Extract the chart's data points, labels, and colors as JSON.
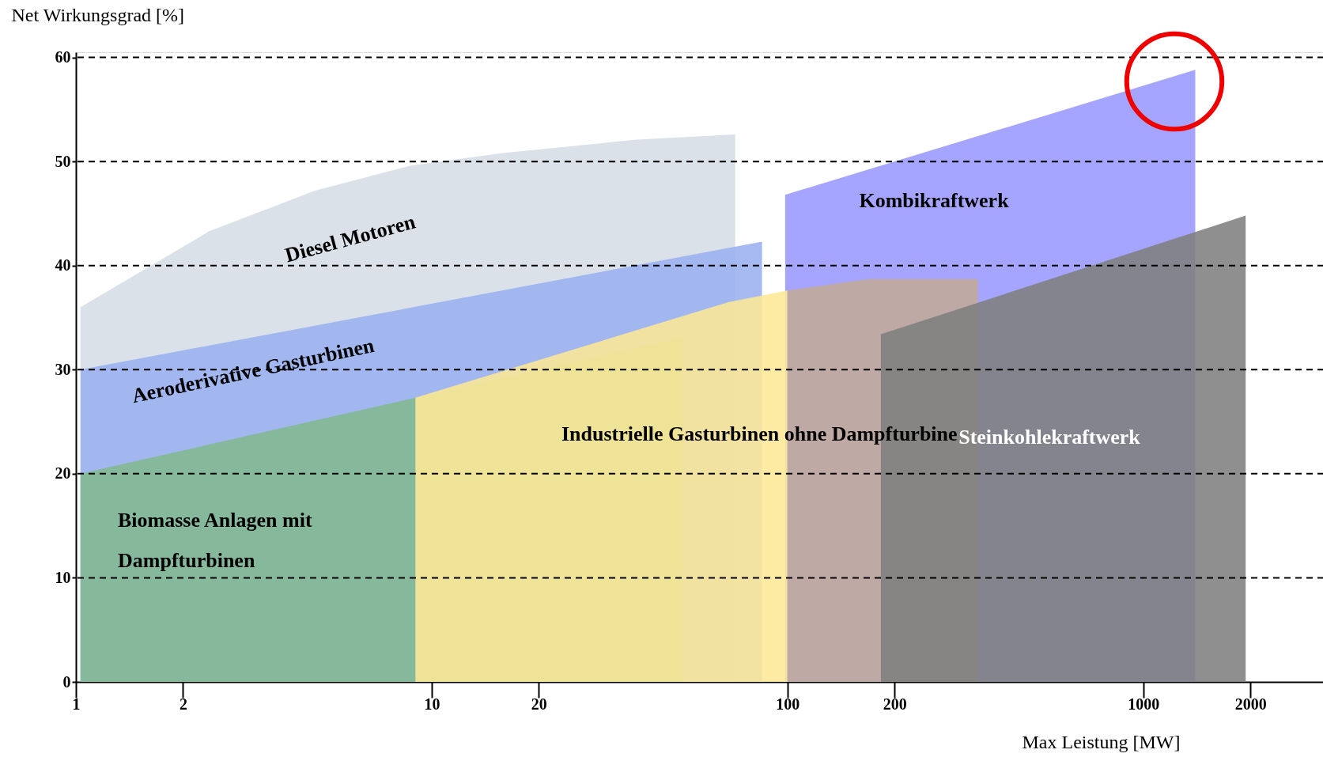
{
  "chart_data": {
    "type": "area",
    "xlabel": "Max Leistung [MW]",
    "ylabel": "Net Wirkungsgrad [%]",
    "log": "x",
    "xlim": [
      1,
      3200
    ],
    "xticks": [
      1,
      2,
      10,
      20,
      100,
      200,
      1000,
      2000
    ],
    "ylim": [
      0,
      60.5
    ],
    "yticks": [
      0,
      10,
      20,
      30,
      40,
      50,
      60
    ],
    "grid": "y",
    "series": [
      {
        "name": "Diesel Motoren",
        "color": "#d5dde5",
        "x": [
          1.03,
          2.37,
          4.7,
          8.7,
          15.8,
          37.6,
          71.3
        ],
        "values": [
          36,
          43.3,
          47.2,
          49.6,
          50.8,
          52.1,
          52.6
        ]
      },
      {
        "name": "Aeroderivative Gasturbinen",
        "color": "#9ab0ef",
        "x": [
          1.03,
          84.8
        ],
        "values": [
          30,
          42.3
        ]
      },
      {
        "name": "Kombikraftwerk",
        "color": "#9999ff",
        "x": [
          98.5,
          1400
        ],
        "values": [
          46.8,
          58.8
        ]
      },
      {
        "name": "Biomasse Anlagen mit Dampfturbinen",
        "color": "#82b890",
        "x": [
          1.03,
          9.0,
          50.8
        ],
        "values": [
          20,
          27.3,
          33.1
        ]
      },
      {
        "name": "Industrielle Gasturbinen ohne Dampfturbine",
        "color": "#fde896",
        "x": [
          9.0,
          68.5,
          100
        ],
        "values": [
          27.3,
          36.5,
          37.6
        ]
      },
      {
        "color": "#c2aa98",
        "x": [
          100,
          169,
          343
        ],
        "values": [
          37.6,
          38.7,
          38.7
        ]
      },
      {
        "name": "Steinkohlekraftwerk",
        "color": "#808080",
        "x": [
          183,
          1940
        ],
        "values": [
          33.4,
          44.8
        ]
      }
    ]
  }
}
